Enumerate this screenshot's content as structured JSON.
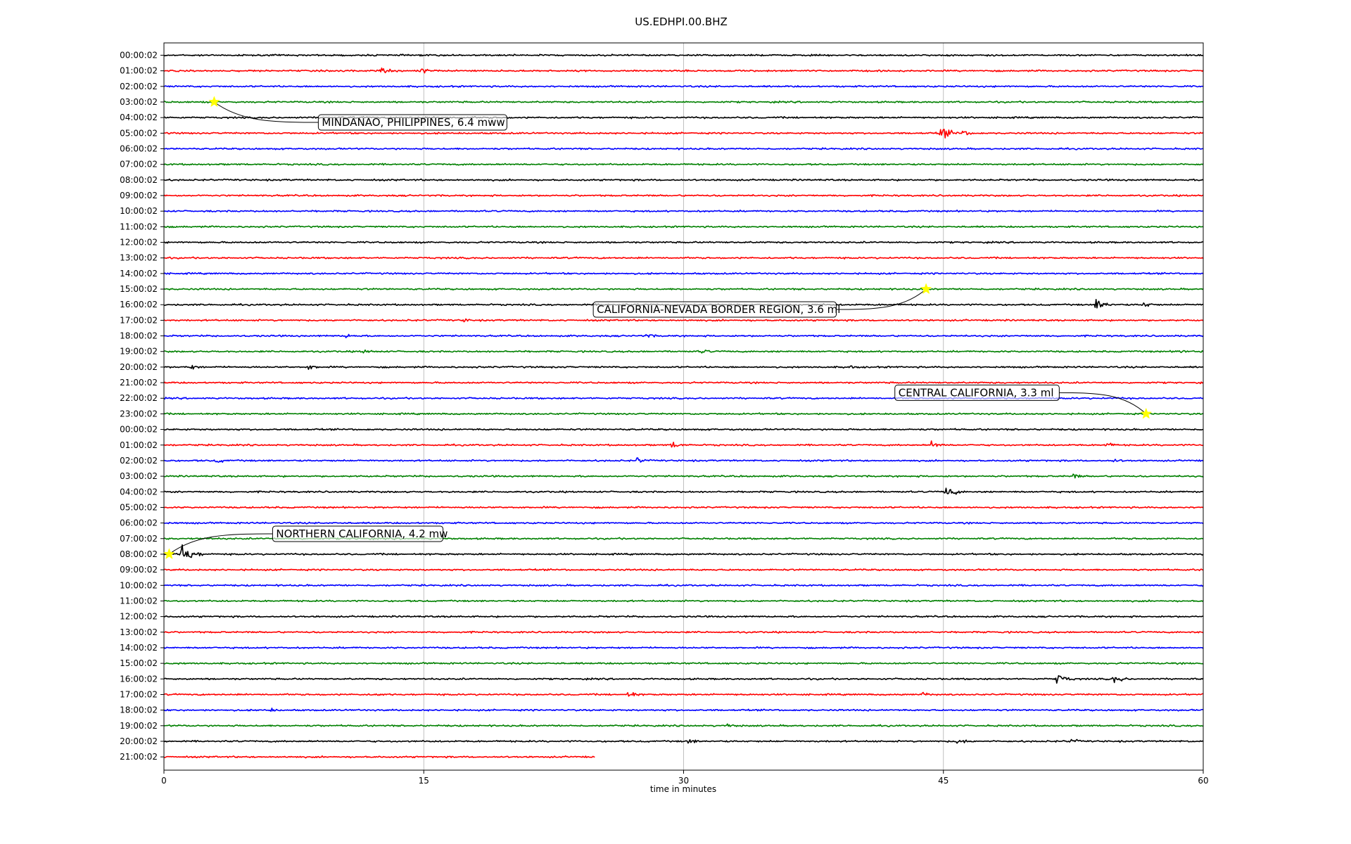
{
  "chart_data": {
    "type": "line",
    "title": "US.EDHPI.00.BHZ",
    "xlabel": "time in minutes",
    "ylabel": "",
    "xlim": [
      0,
      60
    ],
    "xticks": [
      0,
      15,
      30,
      45,
      60
    ],
    "grid": "vertical lines at x ticks",
    "trace_colors": [
      "#000000",
      "#ff0000",
      "#0000ff",
      "#008000"
    ],
    "rows": [
      {
        "label": "00:00:02",
        "end": 60
      },
      {
        "label": "01:00:02",
        "end": 60
      },
      {
        "label": "02:00:02",
        "end": 60
      },
      {
        "label": "03:00:02",
        "end": 60
      },
      {
        "label": "04:00:02",
        "end": 60
      },
      {
        "label": "05:00:02",
        "end": 60
      },
      {
        "label": "06:00:02",
        "end": 60
      },
      {
        "label": "07:00:02",
        "end": 60
      },
      {
        "label": "08:00:02",
        "end": 60
      },
      {
        "label": "09:00:02",
        "end": 60
      },
      {
        "label": "10:00:02",
        "end": 60
      },
      {
        "label": "11:00:02",
        "end": 60
      },
      {
        "label": "12:00:02",
        "end": 60
      },
      {
        "label": "13:00:02",
        "end": 60
      },
      {
        "label": "14:00:02",
        "end": 60
      },
      {
        "label": "15:00:02",
        "end": 60
      },
      {
        "label": "16:00:02",
        "end": 60
      },
      {
        "label": "17:00:02",
        "end": 60
      },
      {
        "label": "18:00:02",
        "end": 60
      },
      {
        "label": "19:00:02",
        "end": 60
      },
      {
        "label": "20:00:02",
        "end": 60
      },
      {
        "label": "21:00:02",
        "end": 60
      },
      {
        "label": "22:00:02",
        "end": 60
      },
      {
        "label": "23:00:02",
        "end": 60
      },
      {
        "label": "00:00:02",
        "end": 60
      },
      {
        "label": "01:00:02",
        "end": 60
      },
      {
        "label": "02:00:02",
        "end": 60
      },
      {
        "label": "03:00:02",
        "end": 60
      },
      {
        "label": "04:00:02",
        "end": 60
      },
      {
        "label": "05:00:02",
        "end": 60
      },
      {
        "label": "06:00:02",
        "end": 60
      },
      {
        "label": "07:00:02",
        "end": 60
      },
      {
        "label": "08:00:02",
        "end": 60
      },
      {
        "label": "09:00:02",
        "end": 60
      },
      {
        "label": "10:00:02",
        "end": 60
      },
      {
        "label": "11:00:02",
        "end": 60
      },
      {
        "label": "12:00:02",
        "end": 60
      },
      {
        "label": "13:00:02",
        "end": 60
      },
      {
        "label": "14:00:02",
        "end": 60
      },
      {
        "label": "15:00:02",
        "end": 60
      },
      {
        "label": "16:00:02",
        "end": 60
      },
      {
        "label": "17:00:02",
        "end": 60
      },
      {
        "label": "18:00:02",
        "end": 60
      },
      {
        "label": "19:00:02",
        "end": 60
      },
      {
        "label": "20:00:02",
        "end": 60
      },
      {
        "label": "21:00:02",
        "end": 24.9
      }
    ],
    "bursts": [
      {
        "row": 1,
        "t": 12.5,
        "amp": 2.5
      },
      {
        "row": 1,
        "t": 14.8,
        "amp": 2.0
      },
      {
        "row": 5,
        "t": 44.8,
        "amp": 4.5
      },
      {
        "row": 5,
        "t": 46.0,
        "amp": 2.2
      },
      {
        "row": 16,
        "t": 53.8,
        "amp": 4.0
      },
      {
        "row": 16,
        "t": 56.5,
        "amp": 2.2
      },
      {
        "row": 17,
        "t": 17.2,
        "amp": 1.5
      },
      {
        "row": 18,
        "t": 10.5,
        "amp": 1.5
      },
      {
        "row": 18,
        "t": 27.8,
        "amp": 1.6
      },
      {
        "row": 19,
        "t": 11.5,
        "amp": 1.6
      },
      {
        "row": 19,
        "t": 31.0,
        "amp": 1.6
      },
      {
        "row": 19,
        "t": 58.5,
        "amp": 1.8
      },
      {
        "row": 20,
        "t": 1.5,
        "amp": 1.8
      },
      {
        "row": 20,
        "t": 8.3,
        "amp": 2.0
      },
      {
        "row": 20,
        "t": 39.5,
        "amp": 1.5
      },
      {
        "row": 25,
        "t": 29.3,
        "amp": 2.5
      },
      {
        "row": 25,
        "t": 44.3,
        "amp": 2.4
      },
      {
        "row": 25,
        "t": 54.3,
        "amp": 2.0
      },
      {
        "row": 26,
        "t": 3.0,
        "amp": 1.8
      },
      {
        "row": 26,
        "t": 27.3,
        "amp": 2.0
      },
      {
        "row": 26,
        "t": 54.8,
        "amp": 1.5
      },
      {
        "row": 27,
        "t": 52.5,
        "amp": 1.8
      },
      {
        "row": 28,
        "t": 45.1,
        "amp": 4.0
      },
      {
        "row": 32,
        "t": 1.0,
        "amp": 7.0
      },
      {
        "row": 40,
        "t": 51.5,
        "amp": 3.8
      },
      {
        "row": 40,
        "t": 54.8,
        "amp": 2.8
      },
      {
        "row": 41,
        "t": 26.8,
        "amp": 2.2
      },
      {
        "row": 41,
        "t": 12.2,
        "amp": 1.5
      },
      {
        "row": 41,
        "t": 43.8,
        "amp": 1.5
      },
      {
        "row": 42,
        "t": 6.1,
        "amp": 1.5
      },
      {
        "row": 43,
        "t": 32.5,
        "amp": 1.5
      },
      {
        "row": 44,
        "t": 30.2,
        "amp": 2.0
      },
      {
        "row": 44,
        "t": 45.8,
        "amp": 2.0
      },
      {
        "row": 44,
        "t": 52.3,
        "amp": 1.8
      }
    ],
    "events": [
      {
        "label": "MINDANAO, PHILIPPINES, 6.4 mww",
        "row": 3,
        "t": 2.9,
        "anchor": "right"
      },
      {
        "label": "CALIFORNIA-NEVADA BORDER REGION, 3.6 ml",
        "row": 15,
        "t": 44.0,
        "anchor": "left"
      },
      {
        "label": "CENTRAL CALIFORNIA, 3.3 ml",
        "row": 23,
        "t": 56.7,
        "anchor": "left"
      },
      {
        "label": "NORTHERN CALIFORNIA, 4.2 mw",
        "row": 32,
        "t": 0.3,
        "anchor": "right"
      }
    ]
  }
}
